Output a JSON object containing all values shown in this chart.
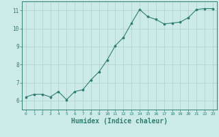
{
  "x": [
    0,
    1,
    2,
    3,
    4,
    5,
    6,
    7,
    8,
    9,
    10,
    11,
    12,
    13,
    14,
    15,
    16,
    17,
    18,
    19,
    20,
    21,
    22,
    23
  ],
  "y": [
    6.2,
    6.35,
    6.35,
    6.2,
    6.5,
    6.05,
    6.5,
    6.6,
    7.15,
    7.6,
    8.25,
    9.05,
    9.5,
    10.3,
    11.05,
    10.65,
    10.5,
    10.25,
    10.3,
    10.35,
    10.6,
    11.05,
    11.1,
    11.1
  ],
  "line_color": "#2e7d6e",
  "marker": "o",
  "marker_size": 2.2,
  "bg_color": "#cceae8",
  "grid_color": "#b0d4d0",
  "axis_color": "#2e7d6e",
  "xlabel": "Humidex (Indice chaleur)",
  "xlabel_fontsize": 7,
  "tick_label_color": "#2e7d6e",
  "xlim": [
    -0.5,
    23.5
  ],
  "ylim": [
    5.5,
    11.5
  ],
  "yticks": [
    6,
    7,
    8,
    9,
    10,
    11
  ],
  "xticks": [
    0,
    1,
    2,
    3,
    4,
    5,
    6,
    7,
    8,
    9,
    10,
    11,
    12,
    13,
    14,
    15,
    16,
    17,
    18,
    19,
    20,
    21,
    22,
    23
  ]
}
